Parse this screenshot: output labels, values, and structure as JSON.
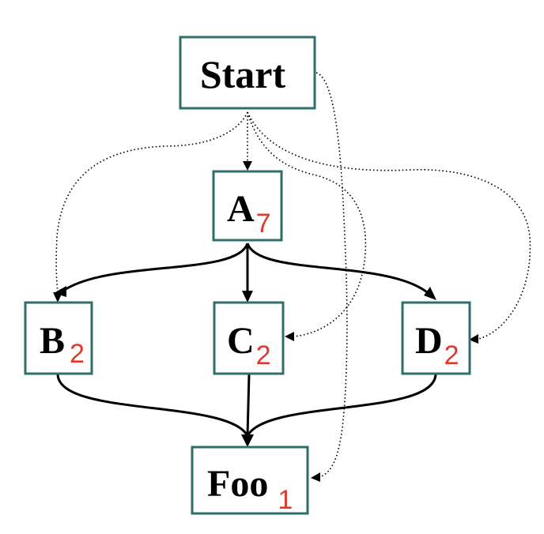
{
  "diagram": {
    "colors": {
      "box_border": "#2f6f6a",
      "subscript": "#e03a2f",
      "label": "#000000",
      "edge": "#000000"
    },
    "nodes": {
      "start": {
        "label": "Start",
        "sub": ""
      },
      "a": {
        "label": "A",
        "sub": "7"
      },
      "b": {
        "label": "B",
        "sub": "2"
      },
      "c": {
        "label": "C",
        "sub": "2"
      },
      "d": {
        "label": "D",
        "sub": "2"
      },
      "foo": {
        "label": "Foo",
        "sub": "1"
      }
    },
    "edges": [
      {
        "from": "start",
        "to": "a",
        "style": "dotted"
      },
      {
        "from": "start",
        "to": "b",
        "style": "dotted"
      },
      {
        "from": "start",
        "to": "c",
        "style": "dotted"
      },
      {
        "from": "start",
        "to": "d",
        "style": "dotted"
      },
      {
        "from": "start",
        "to": "foo",
        "style": "dotted"
      },
      {
        "from": "a",
        "to": "b",
        "style": "solid"
      },
      {
        "from": "a",
        "to": "c",
        "style": "solid"
      },
      {
        "from": "a",
        "to": "d",
        "style": "solid"
      },
      {
        "from": "b",
        "to": "foo",
        "style": "solid"
      },
      {
        "from": "c",
        "to": "foo",
        "style": "solid"
      },
      {
        "from": "d",
        "to": "foo",
        "style": "solid"
      }
    ]
  }
}
